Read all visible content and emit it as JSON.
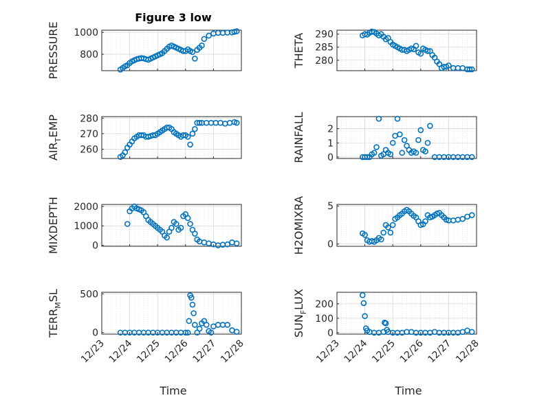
{
  "title": "Figure 3 low",
  "xlabel": "Time",
  "x_ticks": [
    "12/23",
    "12/24",
    "12/25",
    "12/26",
    "12/27",
    "12/28"
  ],
  "colors": {
    "marker": "#0072BD",
    "grid": "#d9d9d9",
    "axis": "#262626"
  },
  "chart_data": [
    {
      "type": "scatter",
      "ylabel": "PRESSURE",
      "ylabel_sub": null,
      "ylim": [
        650,
        1020
      ],
      "yticks": [
        800,
        1000
      ],
      "grid": true,
      "x": [
        "2021-12-23T16:00",
        "2021-12-23T18:00",
        "2021-12-23T20:00",
        "2021-12-23T22:00",
        "2021-12-24T00:00",
        "2021-12-24T02:00",
        "2021-12-24T04:00",
        "2021-12-24T06:00",
        "2021-12-24T08:00",
        "2021-12-24T10:00",
        "2021-12-24T12:00",
        "2021-12-24T14:00",
        "2021-12-24T16:00",
        "2021-12-24T18:00",
        "2021-12-24T20:00",
        "2021-12-24T22:00",
        "2021-12-25T00:00",
        "2021-12-25T02:00",
        "2021-12-25T04:00",
        "2021-12-25T06:00",
        "2021-12-25T08:00",
        "2021-12-25T10:00",
        "2021-12-25T12:00",
        "2021-12-25T14:00",
        "2021-12-25T16:00",
        "2021-12-25T18:00",
        "2021-12-25T20:00",
        "2021-12-25T22:00",
        "2021-12-26T00:00",
        "2021-12-26T02:00",
        "2021-12-26T04:00",
        "2021-12-26T06:00",
        "2021-12-26T08:00",
        "2021-12-26T10:00",
        "2021-12-26T12:00",
        "2021-12-26T14:00",
        "2021-12-26T16:00",
        "2021-12-26T20:00",
        "2021-12-27T00:00",
        "2021-12-27T04:00",
        "2021-12-27T08:00",
        "2021-12-27T12:00",
        "2021-12-27T16:00",
        "2021-12-27T18:00",
        "2021-12-27T20:00"
      ],
      "y": [
        660,
        675,
        690,
        700,
        720,
        735,
        745,
        755,
        760,
        765,
        762,
        755,
        750,
        760,
        770,
        780,
        790,
        800,
        810,
        830,
        850,
        870,
        880,
        870,
        860,
        850,
        840,
        830,
        830,
        845,
        830,
        820,
        760,
        840,
        860,
        880,
        940,
        970,
        990,
        995,
        995,
        998,
        1000,
        1005,
        1010
      ]
    },
    {
      "type": "scatter",
      "ylabel": "THETA",
      "ylabel_sub": null,
      "ylim": [
        276,
        291.5
      ],
      "yticks": [
        280,
        285,
        290
      ],
      "grid": true,
      "x": [
        "2021-12-23T22:00",
        "2021-12-24T00:00",
        "2021-12-24T02:00",
        "2021-12-24T04:00",
        "2021-12-24T06:00",
        "2021-12-24T08:00",
        "2021-12-24T10:00",
        "2021-12-24T12:00",
        "2021-12-24T14:00",
        "2021-12-24T16:00",
        "2021-12-24T18:00",
        "2021-12-24T20:00",
        "2021-12-24T22:00",
        "2021-12-25T00:00",
        "2021-12-25T02:00",
        "2021-12-25T04:00",
        "2021-12-25T06:00",
        "2021-12-25T08:00",
        "2021-12-25T10:00",
        "2021-12-25T12:00",
        "2021-12-25T14:00",
        "2021-12-25T16:00",
        "2021-12-25T18:00",
        "2021-12-25T20:00",
        "2021-12-25T22:00",
        "2021-12-26T00:00",
        "2021-12-26T02:00",
        "2021-12-26T04:00",
        "2021-12-26T06:00",
        "2021-12-26T08:00",
        "2021-12-26T10:00",
        "2021-12-26T12:00",
        "2021-12-26T14:00",
        "2021-12-26T16:00",
        "2021-12-26T18:00",
        "2021-12-26T20:00",
        "2021-12-26T22:00",
        "2021-12-27T00:00",
        "2021-12-27T04:00",
        "2021-12-27T08:00",
        "2021-12-27T12:00",
        "2021-12-27T16:00",
        "2021-12-27T18:00",
        "2021-12-27T20:00"
      ],
      "y": [
        289.5,
        290,
        289.8,
        290.5,
        291,
        290.8,
        290.2,
        289.5,
        290,
        289,
        288,
        288.5,
        287,
        286,
        285.5,
        285,
        284.5,
        284,
        284,
        283.5,
        284,
        284.5,
        284.2,
        285.5,
        283,
        282.5,
        284.5,
        284,
        283.5,
        283.5,
        282,
        281,
        279.5,
        278.5,
        277,
        277.5,
        277.5,
        278,
        277,
        277,
        277,
        276.5,
        276.5,
        276.5
      ]
    },
    {
      "type": "scatter",
      "ylabel": "AIR",
      "ylabel_sub": "T",
      "ylabel_tail": "EMP",
      "ylim": [
        254,
        281
      ],
      "yticks": [
        260,
        270,
        280
      ],
      "grid": true,
      "x": [
        "2021-12-23T16:00",
        "2021-12-23T18:00",
        "2021-12-23T20:00",
        "2021-12-23T22:00",
        "2021-12-24T00:00",
        "2021-12-24T02:00",
        "2021-12-24T04:00",
        "2021-12-24T06:00",
        "2021-12-24T08:00",
        "2021-12-24T10:00",
        "2021-12-24T12:00",
        "2021-12-24T14:00",
        "2021-12-24T16:00",
        "2021-12-24T18:00",
        "2021-12-24T20:00",
        "2021-12-24T22:00",
        "2021-12-25T00:00",
        "2021-12-25T02:00",
        "2021-12-25T04:00",
        "2021-12-25T06:00",
        "2021-12-25T08:00",
        "2021-12-25T10:00",
        "2021-12-25T12:00",
        "2021-12-25T14:00",
        "2021-12-25T16:00",
        "2021-12-25T18:00",
        "2021-12-25T20:00",
        "2021-12-25T22:00",
        "2021-12-26T00:00",
        "2021-12-26T02:00",
        "2021-12-26T04:00",
        "2021-12-26T06:00",
        "2021-12-26T08:00",
        "2021-12-26T10:00",
        "2021-12-26T12:00",
        "2021-12-26T14:00",
        "2021-12-26T18:00",
        "2021-12-26T22:00",
        "2021-12-27T02:00",
        "2021-12-27T06:00",
        "2021-12-27T10:00",
        "2021-12-27T14:00",
        "2021-12-27T18:00",
        "2021-12-27T20:00"
      ],
      "y": [
        255,
        256,
        258,
        261,
        263,
        265,
        267,
        268,
        269,
        269,
        269,
        268,
        268,
        268.5,
        269,
        269,
        270,
        271,
        272,
        273,
        274,
        274,
        273,
        271,
        270,
        269,
        268,
        269,
        269,
        268,
        263,
        270,
        273,
        277,
        277,
        277,
        277,
        277,
        277,
        277,
        276.5,
        277,
        277.5,
        277
      ]
    },
    {
      "type": "scatter",
      "ylabel": "RAINFALL",
      "ylabel_sub": null,
      "ylim": [
        -0.1,
        2.85
      ],
      "yticks": [
        0,
        1,
        2
      ],
      "grid": true,
      "x": [
        "2021-12-23T22:00",
        "2021-12-24T00:00",
        "2021-12-24T02:00",
        "2021-12-24T04:00",
        "2021-12-24T06:00",
        "2021-12-24T08:00",
        "2021-12-24T10:00",
        "2021-12-24T12:00",
        "2021-12-24T14:00",
        "2021-12-24T16:00",
        "2021-12-24T18:00",
        "2021-12-24T20:00",
        "2021-12-24T22:00",
        "2021-12-25T00:00",
        "2021-12-25T02:00",
        "2021-12-25T04:00",
        "2021-12-25T06:00",
        "2021-12-25T08:00",
        "2021-12-25T10:00",
        "2021-12-25T12:00",
        "2021-12-25T14:00",
        "2021-12-25T16:00",
        "2021-12-25T18:00",
        "2021-12-25T20:00",
        "2021-12-25T22:00",
        "2021-12-26T00:00",
        "2021-12-26T02:00",
        "2021-12-26T04:00",
        "2021-12-26T06:00",
        "2021-12-26T08:00",
        "2021-12-26T12:00",
        "2021-12-26T16:00",
        "2021-12-26T20:00",
        "2021-12-27T00:00",
        "2021-12-27T04:00",
        "2021-12-27T08:00",
        "2021-12-27T12:00",
        "2021-12-27T16:00",
        "2021-12-27T20:00"
      ],
      "y": [
        0,
        0,
        0,
        0,
        0.2,
        0.3,
        0.7,
        2.7,
        0.1,
        0.2,
        0.5,
        0.3,
        0.2,
        1,
        1.5,
        2.7,
        1.6,
        0.3,
        1.2,
        0.8,
        0.5,
        0.3,
        0.4,
        0.3,
        1.2,
        1.9,
        0.5,
        0.4,
        1,
        2.2,
        0,
        0,
        0,
        0,
        0,
        0,
        0,
        0,
        0
      ]
    },
    {
      "type": "scatter",
      "ylabel": "MIXDEPTH",
      "ylabel_sub": null,
      "ylim": [
        -50,
        2100
      ],
      "yticks": [
        0,
        1000,
        2000
      ],
      "grid": true,
      "x": [
        "2021-12-23T22:00",
        "2021-12-24T00:00",
        "2021-12-24T02:00",
        "2021-12-24T04:00",
        "2021-12-24T06:00",
        "2021-12-24T08:00",
        "2021-12-24T10:00",
        "2021-12-24T12:00",
        "2021-12-24T14:00",
        "2021-12-24T16:00",
        "2021-12-24T18:00",
        "2021-12-24T20:00",
        "2021-12-24T22:00",
        "2021-12-25T00:00",
        "2021-12-25T02:00",
        "2021-12-25T04:00",
        "2021-12-25T06:00",
        "2021-12-25T08:00",
        "2021-12-25T10:00",
        "2021-12-25T12:00",
        "2021-12-25T14:00",
        "2021-12-25T16:00",
        "2021-12-25T18:00",
        "2021-12-25T20:00",
        "2021-12-25T22:00",
        "2021-12-26T00:00",
        "2021-12-26T02:00",
        "2021-12-26T04:00",
        "2021-12-26T06:00",
        "2021-12-26T08:00",
        "2021-12-26T10:00",
        "2021-12-26T12:00",
        "2021-12-26T16:00",
        "2021-12-26T20:00",
        "2021-12-27T00:00",
        "2021-12-27T04:00",
        "2021-12-27T08:00",
        "2021-12-27T12:00",
        "2021-12-27T16:00",
        "2021-12-27T20:00"
      ],
      "y": [
        1100,
        1750,
        1900,
        2000,
        1900,
        1850,
        1800,
        1700,
        1500,
        1300,
        1200,
        1100,
        1000,
        900,
        800,
        700,
        500,
        400,
        700,
        900,
        1200,
        1100,
        800,
        900,
        1500,
        1600,
        1400,
        1100,
        800,
        600,
        300,
        200,
        150,
        100,
        50,
        0,
        30,
        50,
        150,
        100
      ]
    },
    {
      "type": "scatter",
      "ylabel": "H2OMIXRA",
      "ylabel_sub": null,
      "ylim": [
        -0.3,
        5.2
      ],
      "yticks": [
        0,
        5
      ],
      "grid": true,
      "x": [
        "2021-12-23T22:00",
        "2021-12-24T00:00",
        "2021-12-24T02:00",
        "2021-12-24T04:00",
        "2021-12-24T06:00",
        "2021-12-24T08:00",
        "2021-12-24T10:00",
        "2021-12-24T12:00",
        "2021-12-24T14:00",
        "2021-12-24T16:00",
        "2021-12-24T18:00",
        "2021-12-24T20:00",
        "2021-12-24T22:00",
        "2021-12-25T00:00",
        "2021-12-25T02:00",
        "2021-12-25T04:00",
        "2021-12-25T06:00",
        "2021-12-25T08:00",
        "2021-12-25T10:00",
        "2021-12-25T12:00",
        "2021-12-25T14:00",
        "2021-12-25T16:00",
        "2021-12-25T18:00",
        "2021-12-25T20:00",
        "2021-12-25T22:00",
        "2021-12-26T00:00",
        "2021-12-26T02:00",
        "2021-12-26T04:00",
        "2021-12-26T06:00",
        "2021-12-26T08:00",
        "2021-12-26T10:00",
        "2021-12-26T12:00",
        "2021-12-26T14:00",
        "2021-12-26T16:00",
        "2021-12-26T18:00",
        "2021-12-26T20:00",
        "2021-12-26T22:00",
        "2021-12-27T00:00",
        "2021-12-27T04:00",
        "2021-12-27T08:00",
        "2021-12-27T12:00",
        "2021-12-27T16:00",
        "2021-12-27T20:00"
      ],
      "y": [
        1.4,
        1.2,
        0.5,
        0.3,
        0.4,
        0.3,
        0.5,
        0.8,
        0.6,
        1.5,
        2.5,
        2.2,
        1.5,
        2.5,
        3.3,
        3.5,
        3.8,
        4,
        4.3,
        4.5,
        4.3,
        4,
        3.7,
        3.5,
        3,
        2.5,
        2.6,
        3,
        3.8,
        3.5,
        3.6,
        3.8,
        4,
        4.1,
        3.8,
        3.5,
        3.2,
        3.1,
        3.1,
        3.2,
        3.3,
        3.6,
        3.8
      ]
    },
    {
      "type": "scatter",
      "ylabel": "TERR",
      "ylabel_sub": "M",
      "ylabel_tail": "SL",
      "ylim": [
        -20,
        520
      ],
      "yticks": [
        0,
        500
      ],
      "grid": true,
      "x": [
        "2021-12-23T16:00",
        "2021-12-23T20:00",
        "2021-12-24T00:00",
        "2021-12-24T04:00",
        "2021-12-24T08:00",
        "2021-12-24T12:00",
        "2021-12-24T16:00",
        "2021-12-24T20:00",
        "2021-12-25T00:00",
        "2021-12-25T04:00",
        "2021-12-25T08:00",
        "2021-12-25T12:00",
        "2021-12-25T16:00",
        "2021-12-25T20:00",
        "2021-12-26T00:00",
        "2021-12-26T02:00",
        "2021-12-26T03:00",
        "2021-12-26T04:00",
        "2021-12-26T05:00",
        "2021-12-26T06:00",
        "2021-12-26T07:00",
        "2021-12-26T08:00",
        "2021-12-26T10:00",
        "2021-12-26T12:00",
        "2021-12-26T14:00",
        "2021-12-26T16:00",
        "2021-12-26T18:00",
        "2021-12-26T20:00",
        "2021-12-26T22:00",
        "2021-12-27T00:00",
        "2021-12-27T04:00",
        "2021-12-27T08:00",
        "2021-12-27T12:00",
        "2021-12-27T16:00",
        "2021-12-27T20:00"
      ],
      "y": [
        0,
        0,
        0,
        0,
        0,
        0,
        0,
        0,
        0,
        0,
        0,
        0,
        0,
        0,
        0,
        0,
        150,
        480,
        450,
        360,
        250,
        100,
        0,
        50,
        120,
        150,
        100,
        20,
        0,
        80,
        100,
        100,
        100,
        30,
        10
      ]
    },
    {
      "type": "scatter",
      "ylabel": "SUN",
      "ylabel_sub": "F",
      "ylabel_tail": "LUX",
      "ylim": [
        -10,
        280
      ],
      "yticks": [
        0,
        100,
        200
      ],
      "grid": true,
      "x": [
        "2021-12-23T22:00",
        "2021-12-23T23:00",
        "2021-12-24T00:00",
        "2021-12-24T01:00",
        "2021-12-24T02:00",
        "2021-12-24T04:00",
        "2021-12-24T08:00",
        "2021-12-24T12:00",
        "2021-12-24T16:00",
        "2021-12-24T17:00",
        "2021-12-24T18:00",
        "2021-12-24T19:00",
        "2021-12-24T20:00",
        "2021-12-25T00:00",
        "2021-12-25T04:00",
        "2021-12-25T08:00",
        "2021-12-25T12:00",
        "2021-12-25T16:00",
        "2021-12-25T20:00",
        "2021-12-26T00:00",
        "2021-12-26T04:00",
        "2021-12-26T08:00",
        "2021-12-26T12:00",
        "2021-12-26T16:00",
        "2021-12-26T20:00",
        "2021-12-27T00:00",
        "2021-12-27T04:00",
        "2021-12-27T08:00",
        "2021-12-27T12:00",
        "2021-12-27T16:00",
        "2021-12-27T20:00"
      ],
      "y": [
        260,
        205,
        115,
        30,
        15,
        5,
        0,
        0,
        5,
        70,
        65,
        20,
        5,
        0,
        0,
        0,
        5,
        5,
        0,
        0,
        0,
        0,
        5,
        0,
        0,
        0,
        0,
        0,
        5,
        15,
        5
      ]
    }
  ]
}
